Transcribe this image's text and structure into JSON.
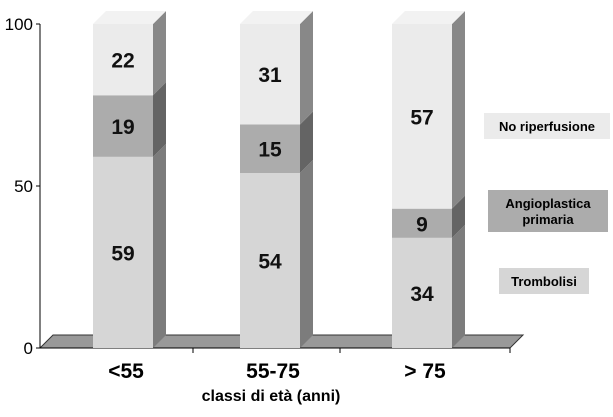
{
  "chart_data": {
    "type": "bar",
    "stacked": true,
    "three_d": true,
    "categories": [
      "<55",
      "55-75",
      "> 75"
    ],
    "xlabel": "classi di età (anni)",
    "ylabel": "",
    "ylim": [
      0,
      100
    ],
    "yticks": [
      "0",
      "50",
      "100"
    ],
    "series": [
      {
        "name": "Trombolisi",
        "values": [
          59,
          54,
          34
        ],
        "color": "#d6d6d6"
      },
      {
        "name": "Angioplastica primaria",
        "values": [
          19,
          15,
          9
        ],
        "color": "#acacac"
      },
      {
        "name": "No riperfusione",
        "values": [
          22,
          31,
          57
        ],
        "color": "#ebebeb"
      }
    ],
    "legend": {
      "placement": "right",
      "items": [
        {
          "lines": [
            "No riperfusione"
          ],
          "color": "#ebebeb"
        },
        {
          "lines": [
            "Angioplastica",
            "primaria"
          ],
          "color": "#acacac"
        },
        {
          "lines": [
            "Trombolisi"
          ],
          "color": "#d6d6d6"
        }
      ]
    },
    "grid": false
  }
}
